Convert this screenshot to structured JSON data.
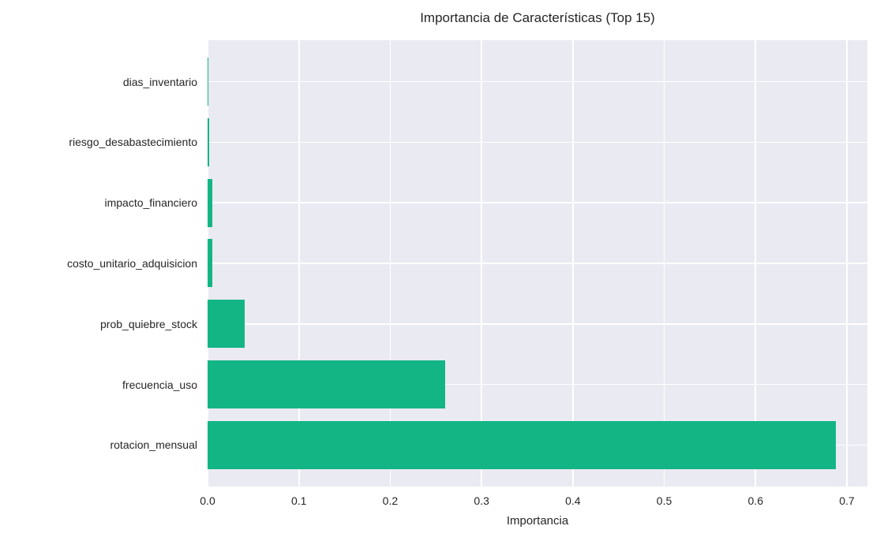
{
  "chart_data": {
    "type": "bar",
    "orientation": "horizontal",
    "title": "Importancia de Características (Top 15)",
    "xlabel": "Importancia",
    "ylabel": "",
    "categories": [
      "dias_inventario",
      "riesgo_desabastecimiento",
      "impacto_financiero",
      "costo_unitario_adquisicion",
      "prob_quiebre_stock",
      "frecuencia_uso",
      "rotacion_mensual"
    ],
    "category_order": "top_to_bottom",
    "values": [
      0.001,
      0.002,
      0.005,
      0.005,
      0.041,
      0.26,
      0.688
    ],
    "x_ticks": [
      0.0,
      0.1,
      0.2,
      0.3,
      0.4,
      0.5,
      0.6,
      0.7
    ],
    "x_tick_labels": [
      "0.0",
      "0.1",
      "0.2",
      "0.3",
      "0.4",
      "0.5",
      "0.6",
      "0.7"
    ],
    "xlim": [
      0,
      0.7225
    ],
    "grid": "both",
    "legend": false,
    "colors": {
      "bar": "#13b585",
      "plot_background": "#eaeaf2",
      "gridline": "#ffffff",
      "text": "#262626",
      "figure_background": "#ffffff"
    }
  }
}
